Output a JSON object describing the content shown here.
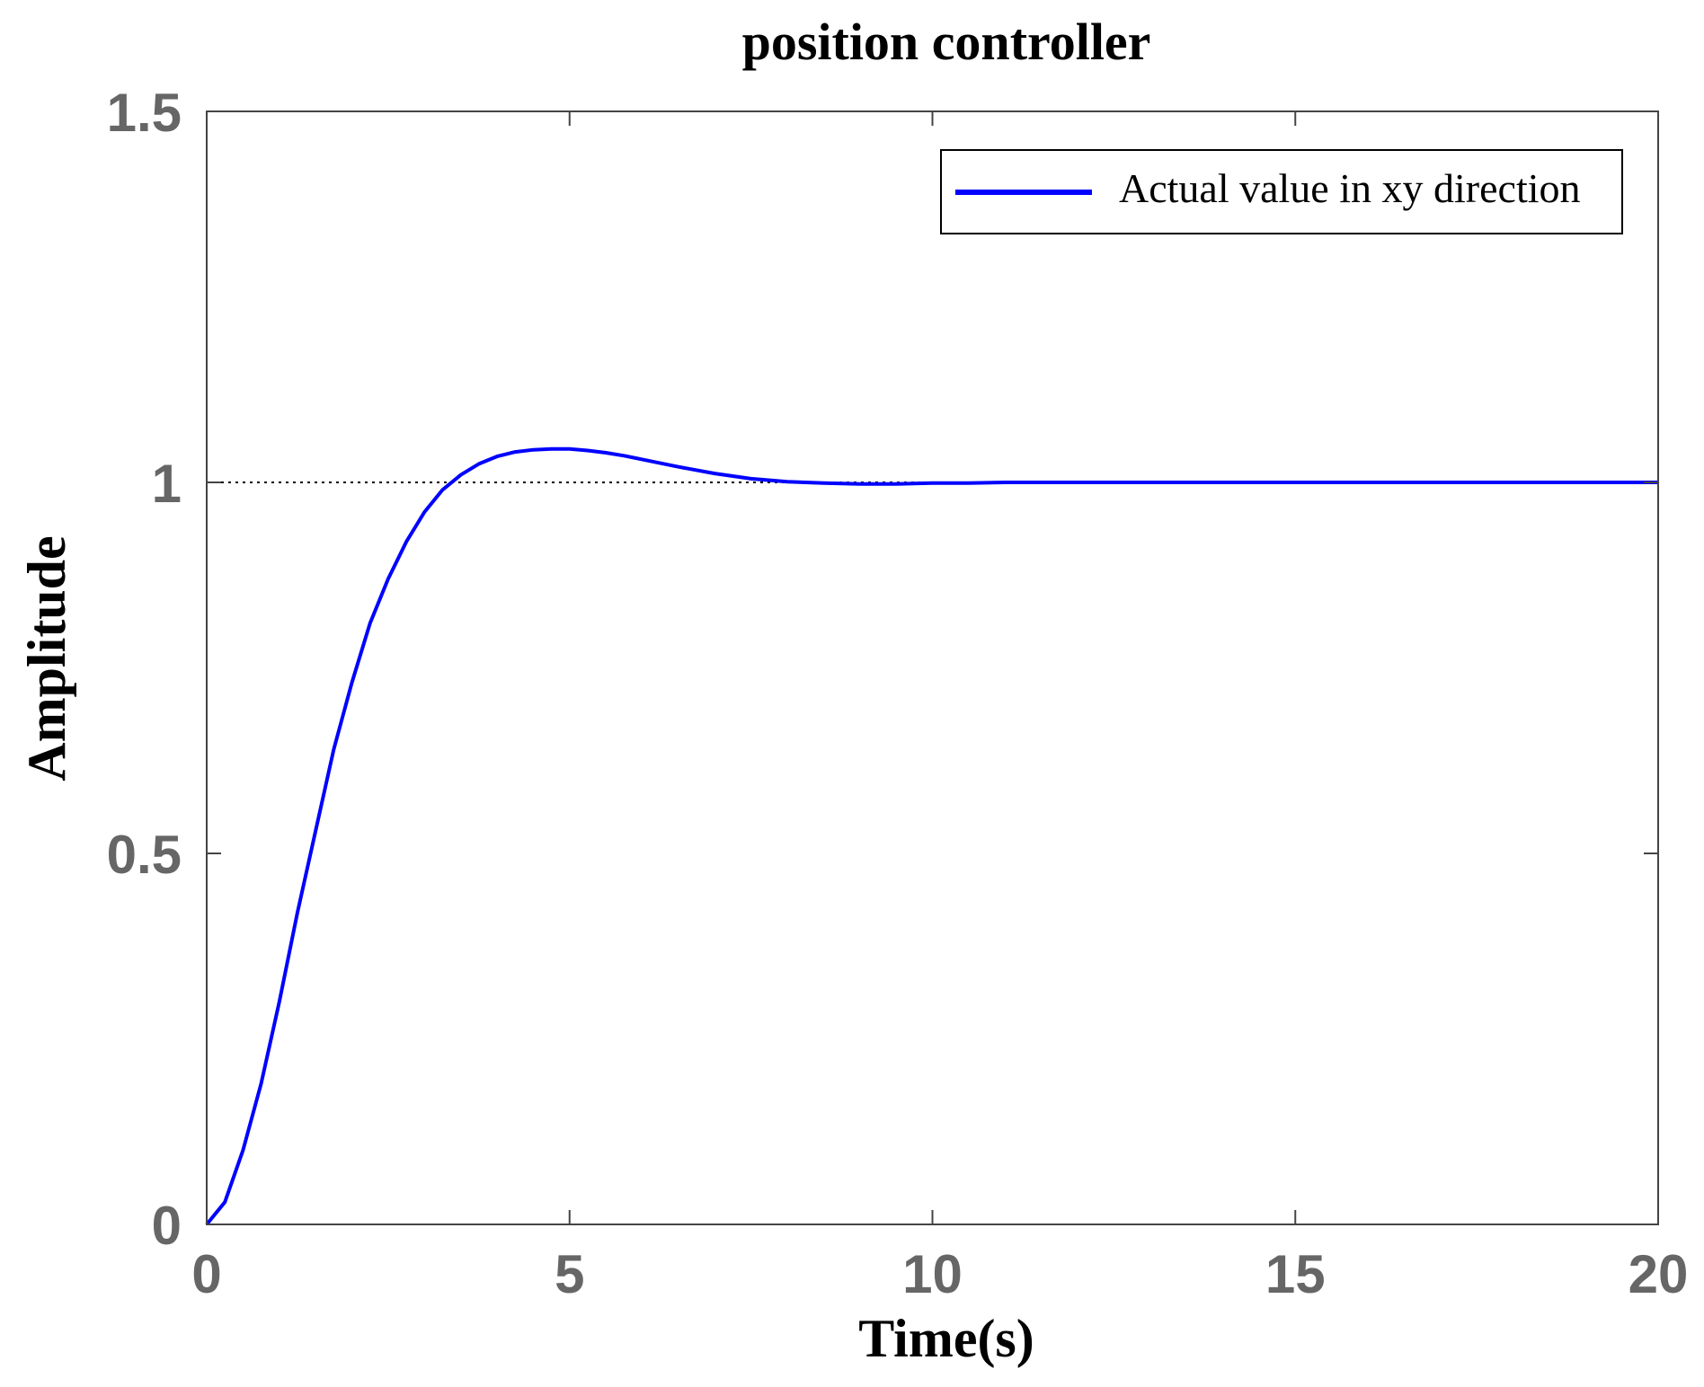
{
  "chart_data": {
    "type": "line",
    "title": "position controller",
    "xlabel": "Time(s)",
    "ylabel": "Amplitude",
    "xlim": [
      0,
      20
    ],
    "ylim": [
      0,
      1.5
    ],
    "xticks": [
      0,
      5,
      10,
      15,
      20
    ],
    "yticks": [
      0,
      0.5,
      1,
      1.5
    ],
    "xtick_labels": [
      "0",
      "5",
      "10",
      "15",
      "20"
    ],
    "ytick_labels": [
      "0",
      "0.5",
      "1",
      "1.5"
    ],
    "grid": false,
    "legend_position": "top-right",
    "reference_line": {
      "y": 1,
      "style": "dotted",
      "color": "#000000"
    },
    "series": [
      {
        "name": "Actual value in xy direction",
        "color": "#0000ff",
        "x": [
          0,
          0.25,
          0.5,
          0.75,
          1.0,
          1.25,
          1.5,
          1.75,
          2.0,
          2.25,
          2.5,
          2.75,
          3.0,
          3.25,
          3.5,
          3.75,
          4.0,
          4.25,
          4.5,
          4.75,
          5.0,
          5.25,
          5.5,
          5.75,
          6.0,
          6.5,
          7.0,
          7.5,
          8.0,
          8.5,
          9.0,
          9.5,
          10.0,
          10.5,
          11.0,
          12.0,
          13.0,
          14.0,
          15.0,
          16.0,
          17.0,
          18.0,
          19.0,
          20.0
        ],
        "y": [
          0,
          0.03,
          0.1,
          0.19,
          0.3,
          0.42,
          0.53,
          0.64,
          0.73,
          0.81,
          0.87,
          0.92,
          0.96,
          0.99,
          1.01,
          1.025,
          1.035,
          1.041,
          1.044,
          1.045,
          1.045,
          1.043,
          1.04,
          1.036,
          1.031,
          1.021,
          1.012,
          1.005,
          1.001,
          0.999,
          0.998,
          0.998,
          0.999,
          0.999,
          1.0,
          1.0,
          1.0,
          1.0,
          1.0,
          1.0,
          1.0,
          1.0,
          1.0,
          1.0
        ]
      }
    ]
  }
}
